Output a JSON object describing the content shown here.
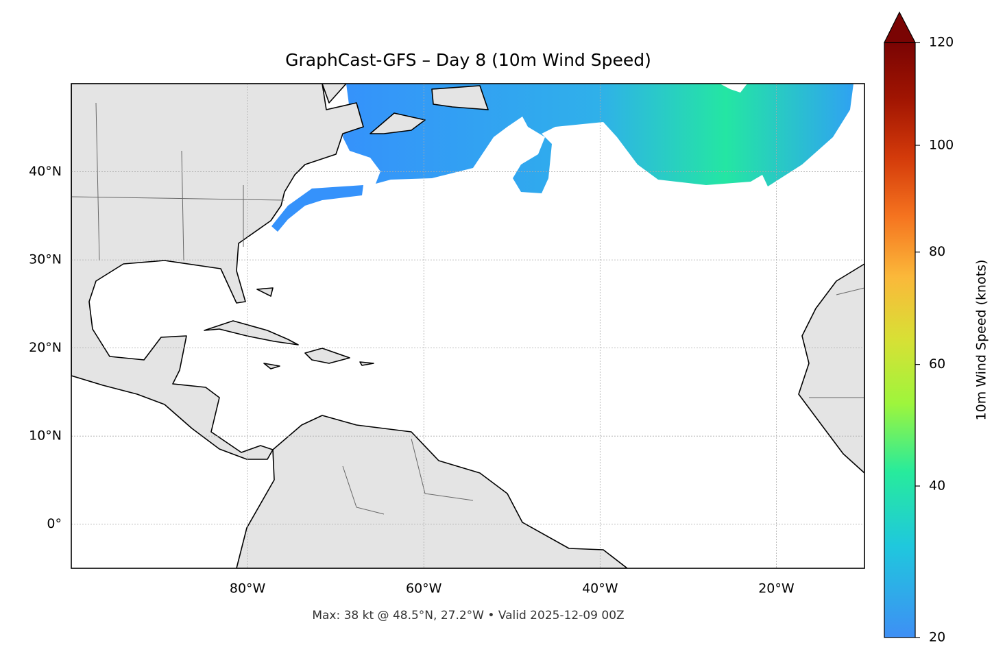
{
  "chart_data": {
    "type": "map",
    "title": "GraphCast-GFS – Day 8 (10m Wind Speed)",
    "annotation": "Max: 38 kt @ 48.5°N, 27.2°W • Valid 2025-12-09 00Z",
    "xlim": [
      -100,
      -10
    ],
    "ylim": [
      -5,
      50
    ],
    "xticks": [
      {
        "value": -80,
        "label": "80°W"
      },
      {
        "value": -60,
        "label": "60°W"
      },
      {
        "value": -40,
        "label": "40°W"
      },
      {
        "value": -20,
        "label": "20°W"
      }
    ],
    "yticks": [
      {
        "value": 0,
        "label": "0°"
      },
      {
        "value": 10,
        "label": "10°N"
      },
      {
        "value": 20,
        "label": "20°N"
      },
      {
        "value": 30,
        "label": "30°N"
      },
      {
        "value": 40,
        "label": "40°N"
      }
    ],
    "grid": true,
    "colorbar": {
      "label": "10m Wind Speed (knots)",
      "clim": [
        20,
        120
      ],
      "ticks": [
        20,
        40,
        60,
        80,
        100,
        120
      ],
      "gamma": 0.85,
      "colors": [
        "#3e8ff5",
        "#1fc8dd",
        "#27eb9c",
        "#9ef53c",
        "#d8e035",
        "#fbb83a",
        "#f5731f",
        "#d33a0a",
        "#a11502",
        "#7a0403"
      ]
    }
  }
}
